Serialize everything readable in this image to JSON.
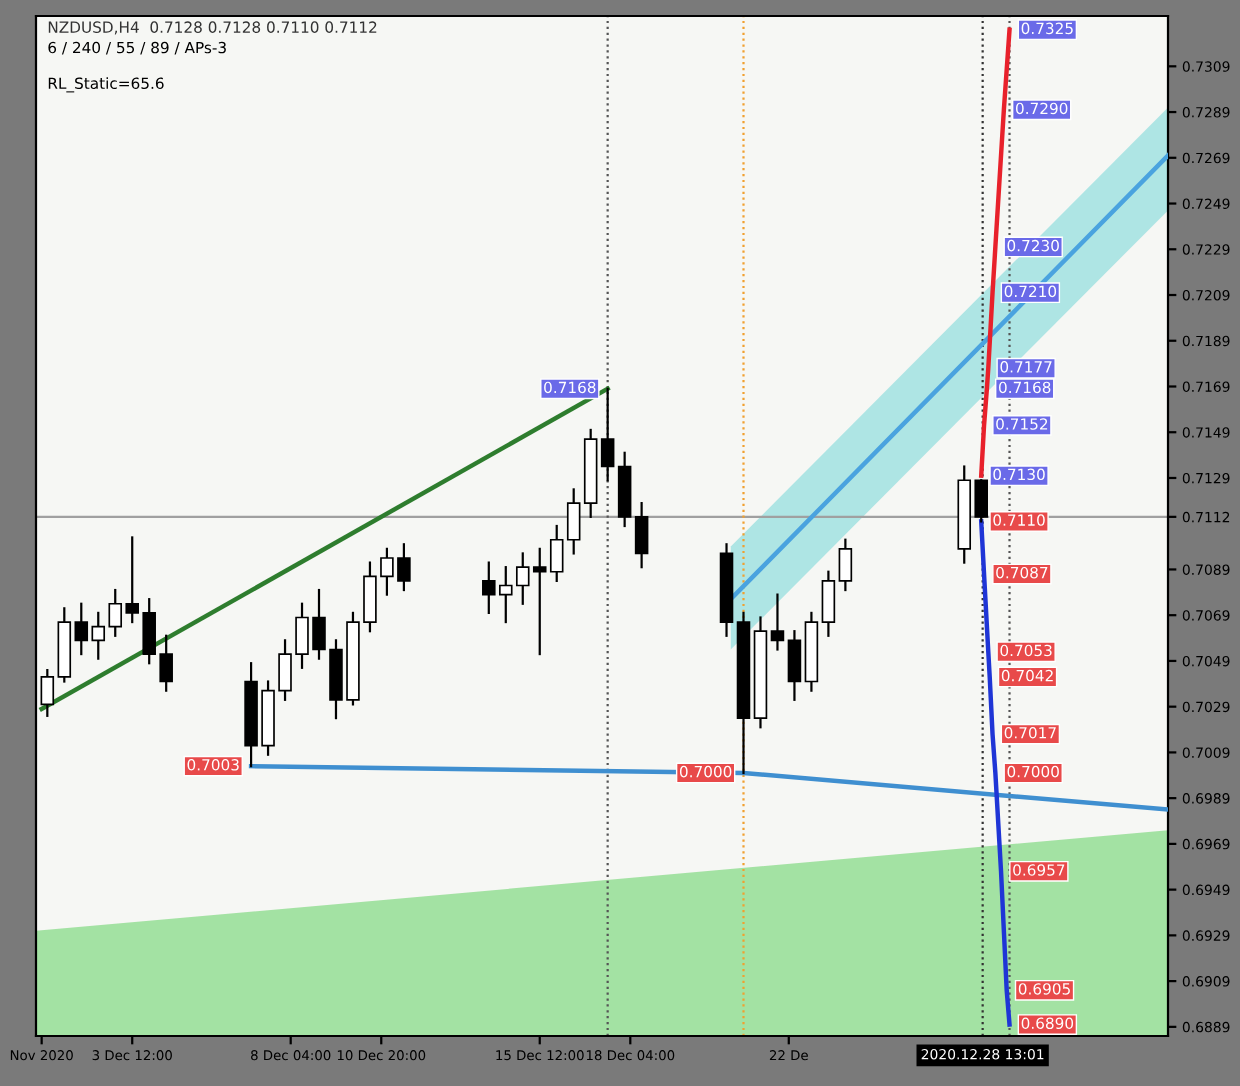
{
  "chart_data": {
    "type": "candlestick",
    "title": "NZDUSD,H4  0.7128 0.7128 0.7110 0.7112",
    "subtitle": "6 / 240 / 55 / 89 / APs-3",
    "x": [
      "2020-12-01T00:00",
      "2020-12-01T12:00",
      "2020-12-02T00:00",
      "2020-12-02T12:00",
      "2020-12-03T00:00",
      "2020-12-03T12:00",
      "2020-12-04T00:00",
      "2020-12-04T12:00",
      "2020-12-07T00:00",
      "2020-12-07T12:00",
      "2020-12-08T00:00",
      "2020-12-08T12:00",
      "2020-12-09T00:00",
      "2020-12-09T12:00",
      "2020-12-10T00:00",
      "2020-12-10T12:00",
      "2020-12-11T00:00",
      "2020-12-11T12:00",
      "2020-12-14T00:00",
      "2020-12-14T12:00",
      "2020-12-15T00:00",
      "2020-12-15T12:00",
      "2020-12-16T00:00",
      "2020-12-16T12:00",
      "2020-12-17T00:00",
      "2020-12-17T12:00",
      "2020-12-18T00:00",
      "2020-12-18T12:00",
      "2020-12-21T00:00",
      "2020-12-21T12:00",
      "2020-12-22T00:00",
      "2020-12-22T12:00",
      "2020-12-23T00:00",
      "2020-12-23T12:00",
      "2020-12-24T00:00",
      "2020-12-24T12:00",
      "2020-12-28T00:00",
      "2020-12-28T12:00"
    ],
    "ohlc": [
      [
        0.703,
        0.7045,
        0.7025,
        0.7042
      ],
      [
        0.7042,
        0.7072,
        0.704,
        0.7066
      ],
      [
        0.7066,
        0.7074,
        0.7052,
        0.7058
      ],
      [
        0.7058,
        0.707,
        0.705,
        0.7064
      ],
      [
        0.7064,
        0.708,
        0.706,
        0.7074
      ],
      [
        0.7074,
        0.7103,
        0.7066,
        0.707
      ],
      [
        0.707,
        0.7076,
        0.7048,
        0.7052
      ],
      [
        0.7052,
        0.706,
        0.7036,
        0.704
      ],
      [
        0.704,
        0.7048,
        0.7003,
        0.7012
      ],
      [
        0.7012,
        0.704,
        0.7008,
        0.7036
      ],
      [
        0.7036,
        0.7058,
        0.7032,
        0.7052
      ],
      [
        0.7052,
        0.7074,
        0.7046,
        0.7068
      ],
      [
        0.7068,
        0.708,
        0.705,
        0.7054
      ],
      [
        0.7054,
        0.7058,
        0.7024,
        0.7032
      ],
      [
        0.7032,
        0.707,
        0.703,
        0.7066
      ],
      [
        0.7066,
        0.7092,
        0.7062,
        0.7086
      ],
      [
        0.7086,
        0.7098,
        0.7078,
        0.7094
      ],
      [
        0.7094,
        0.71,
        0.708,
        0.7084
      ],
      [
        0.7084,
        0.7092,
        0.707,
        0.7078
      ],
      [
        0.7078,
        0.709,
        0.7066,
        0.7082
      ],
      [
        0.7082,
        0.7096,
        0.7074,
        0.709
      ],
      [
        0.709,
        0.7098,
        0.7052,
        0.7088
      ],
      [
        0.7088,
        0.7108,
        0.7084,
        0.7102
      ],
      [
        0.7102,
        0.7124,
        0.7096,
        0.7118
      ],
      [
        0.7118,
        0.715,
        0.7112,
        0.7146
      ],
      [
        0.7146,
        0.7168,
        0.7128,
        0.7134
      ],
      [
        0.7134,
        0.714,
        0.7108,
        0.7112
      ],
      [
        0.7112,
        0.7118,
        0.709,
        0.7096
      ],
      [
        0.7096,
        0.71,
        0.706,
        0.7066
      ],
      [
        0.7066,
        0.707,
        0.7,
        0.7024
      ],
      [
        0.7024,
        0.7068,
        0.702,
        0.7062
      ],
      [
        0.7062,
        0.7078,
        0.7054,
        0.7058
      ],
      [
        0.7058,
        0.7062,
        0.7032,
        0.704
      ],
      [
        0.704,
        0.707,
        0.7036,
        0.7066
      ],
      [
        0.7066,
        0.7088,
        0.706,
        0.7084
      ],
      [
        0.7084,
        0.7102,
        0.708,
        0.7098
      ],
      [
        0.7098,
        0.7134,
        0.7092,
        0.7128
      ],
      [
        0.7128,
        0.7128,
        0.711,
        0.7112
      ]
    ],
    "series": [
      {
        "type": "area",
        "x": [
          "2020-11-30T16:00",
          "2021-01-03T00:00"
        ],
        "values": [
          0.6931,
          0.6975
        ],
        "color": "#8fdc8f"
      },
      {
        "type": "line",
        "x": [
          "2020-12-21T03:00",
          "2021-01-03T00:00"
        ],
        "values": [
          0.7076,
          0.727
        ],
        "lower": [
          0.7054,
          0.7246
        ],
        "upper": [
          0.7099,
          0.7291
        ],
        "color": "#4aa3df"
      },
      {
        "type": "line",
        "x": [
          "2020-11-30T20:00",
          "2020-12-17T12:00"
        ],
        "values": [
          0.7028,
          0.7168
        ],
        "color": "#2e7d2e"
      },
      {
        "type": "line",
        "x": [
          "2020-12-07T00:00",
          "2020-12-21T12:00",
          "2021-01-03T00:00"
        ],
        "values": [
          0.7003,
          0.7,
          0.6984
        ],
        "color": "#3f8fd0"
      },
      {
        "type": "line",
        "x": [
          "2020-12-28T12:00",
          "2020-12-28T14:00",
          "2020-12-28T16:00",
          "2020-12-28T17:00",
          "2020-12-28T20:00",
          "2020-12-28T22:00",
          "2020-12-29T04:00",
          "2020-12-29T08:00"
        ],
        "values": [
          0.713,
          0.7152,
          0.7168,
          0.7177,
          0.721,
          0.723,
          0.729,
          0.7325
        ],
        "color": "#e8212b"
      },
      {
        "type": "line",
        "x": [
          "2020-12-28T12:00",
          "2020-12-28T14:00",
          "2020-12-28T17:00",
          "2020-12-28T18:00",
          "2020-12-28T20:00",
          "2020-12-28T22:00",
          "2020-12-29T02:00",
          "2020-12-29T06:00",
          "2020-12-29T08:00"
        ],
        "values": [
          0.711,
          0.7087,
          0.7053,
          0.7042,
          0.7017,
          0.7,
          0.6957,
          0.6905,
          0.689
        ],
        "color": "#1f35d6"
      }
    ],
    "xlim": [
      "2020-11-30T16:00",
      "2021-01-03T00:00"
    ],
    "xticks": [
      {
        "value": "2020-11-30T20:00",
        "label": "Nov 2020"
      },
      {
        "value": "2020-12-03T12:00",
        "label": "3 Dec 12:00"
      },
      {
        "value": "2020-12-08T04:00",
        "label": "8 Dec 04:00"
      },
      {
        "value": "2020-12-10T20:00",
        "label": "10 Dec 20:00"
      },
      {
        "value": "2020-12-15T12:00",
        "label": "15 Dec 12:00"
      },
      {
        "value": "2020-12-18T04:00",
        "label": "18 Dec 04:00"
      },
      {
        "value": "2020-12-22T20:00",
        "label": "22 De"
      }
    ],
    "ylim": [
      0.6885,
      0.7331
    ],
    "yticks": [
      0.6889,
      0.6909,
      0.6929,
      0.6949,
      0.6969,
      0.6989,
      0.7009,
      0.7029,
      0.7049,
      0.7069,
      0.7089,
      0.7112,
      0.7129,
      0.7149,
      0.7169,
      0.7189,
      0.7209,
      0.7229,
      0.7249,
      0.7269,
      0.7289,
      0.7309
    ],
    "ref_lines": [
      {
        "axis": "y",
        "value": 0.7112,
        "color": "#a0a0a0",
        "line_style": "solid"
      },
      {
        "axis": "x",
        "value": "2020-12-17T12:00",
        "color": "#555555",
        "line_style": "dotted"
      },
      {
        "axis": "x",
        "value": "2020-12-21T12:00",
        "color": "#f0a030",
        "line_style": "dotted"
      },
      {
        "axis": "x",
        "value": "2020-12-28T13:01",
        "label": "2020.12.28 13:01",
        "color": "#333333",
        "line_style": "dotted"
      },
      {
        "axis": "x",
        "value": "2020-12-29T08:00",
        "color": "#555555",
        "line_style": "dotted"
      }
    ],
    "annotations": [
      "RL_Static=65.6",
      {
        "text": "0.7168",
        "x": "2020-12-17T12:00",
        "y": 0.7168
      },
      {
        "text": "0.7003",
        "x": "2020-12-07T00:00",
        "y": 0.7003
      },
      {
        "text": "0.7000",
        "x": "2020-12-21T12:00",
        "y": 0.7
      },
      {
        "text": "0.7325",
        "x": "2020-12-29T08:00",
        "y": 0.7325
      },
      {
        "text": "0.7290",
        "x": "2020-12-29T04:00",
        "y": 0.729
      },
      {
        "text": "0.7230",
        "x": "2020-12-28T22:00",
        "y": 0.723
      },
      {
        "text": "0.7210",
        "x": "2020-12-28T20:00",
        "y": 0.721
      },
      {
        "text": "0.7177",
        "x": "2020-12-28T17:00",
        "y": 0.7177
      },
      {
        "text": "0.7168",
        "x": "2020-12-28T16:00",
        "y": 0.7168
      },
      {
        "text": "0.7152",
        "x": "2020-12-28T14:00",
        "y": 0.7152
      },
      {
        "text": "0.7130",
        "x": "2020-12-28T12:00",
        "y": 0.713
      },
      {
        "text": "0.7110",
        "x": "2020-12-28T12:00",
        "y": 0.711
      },
      {
        "text": "0.7087",
        "x": "2020-12-28T14:00",
        "y": 0.7087
      },
      {
        "text": "0.7053",
        "x": "2020-12-28T17:00",
        "y": 0.7053
      },
      {
        "text": "0.7042",
        "x": "2020-12-28T18:00",
        "y": 0.7042
      },
      {
        "text": "0.7017",
        "x": "2020-12-28T20:00",
        "y": 0.7017
      },
      {
        "text": "0.7000",
        "x": "2020-12-28T22:00",
        "y": 0.7
      },
      {
        "text": "0.6957",
        "x": "2020-12-29T02:00",
        "y": 0.6957
      },
      {
        "text": "0.6905",
        "x": "2020-12-29T06:00",
        "y": 0.6905
      },
      {
        "text": "0.6890",
        "x": "2020-12-29T08:00",
        "y": 0.689
      }
    ],
    "grid": false
  }
}
